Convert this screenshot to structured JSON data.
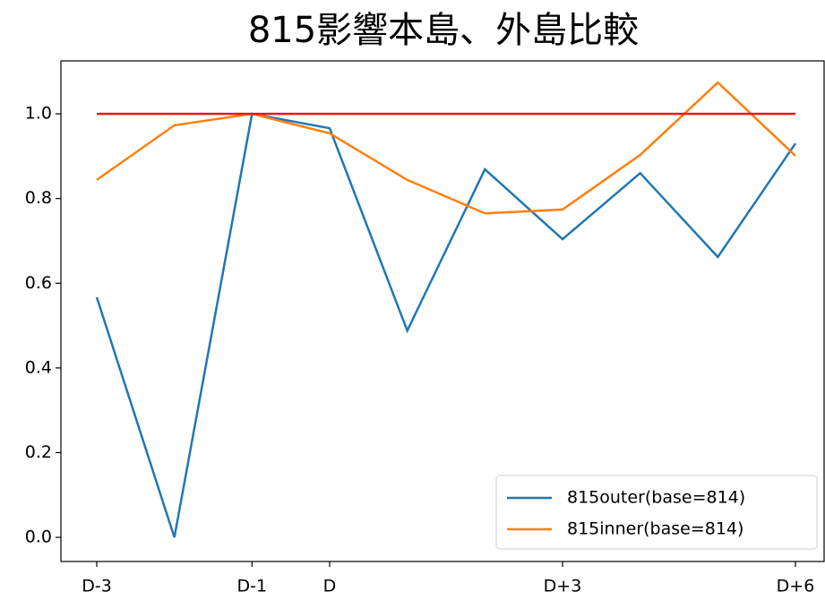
{
  "chart_data": {
    "type": "line",
    "title": "815影響本島、外島比較",
    "categories": [
      "D-3",
      null,
      "D-1",
      "D",
      null,
      null,
      "D+3",
      null,
      null,
      "D+6"
    ],
    "series": [
      {
        "name": "815outer(base=814)",
        "color": "#1f77b4",
        "values": [
          0.567,
          0.0,
          1.0,
          0.966,
          0.488,
          0.869,
          0.704,
          0.86,
          0.662,
          0.93
        ]
      },
      {
        "name": "815inner(base=814)",
        "color": "#ff7f0e",
        "values": [
          0.844,
          0.973,
          1.0,
          0.954,
          0.844,
          0.765,
          0.774,
          0.903,
          1.074,
          0.901
        ]
      },
      {
        "color": "#e41a1c",
        "values": [
          1.0,
          1.0,
          1.0,
          1.0,
          1.0,
          1.0,
          1.0,
          1.0,
          1.0,
          1.0
        ]
      }
    ],
    "ylim": [
      -0.057,
      1.125
    ],
    "yticks": [
      {
        "value": 0,
        "label": "0.0"
      },
      {
        "value": 0.2,
        "label": "0.2"
      },
      {
        "value": 0.4,
        "label": "0.4"
      },
      {
        "value": 0.6,
        "label": "0.6"
      },
      {
        "value": 0.8,
        "label": "0.8"
      },
      {
        "value": 1,
        "label": "1.0"
      }
    ],
    "legend": "lower right"
  }
}
